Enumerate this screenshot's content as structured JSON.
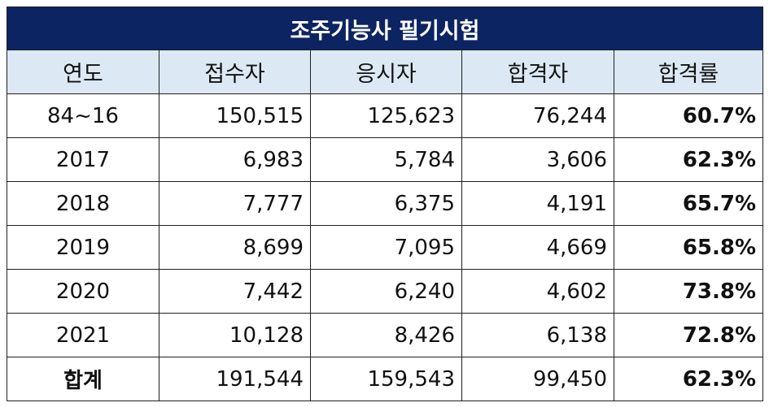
{
  "table": {
    "title": "조주기능사 필기시험",
    "headers": [
      "연도",
      "접수자",
      "응시자",
      "합격자",
      "합격률"
    ],
    "rows": [
      {
        "year": "84~16",
        "registered": "150,515",
        "examinees": "125,623",
        "passed": "76,244",
        "pass_rate": "60.7%"
      },
      {
        "year": "2017",
        "registered": "6,983",
        "examinees": "5,784",
        "passed": "3,606",
        "pass_rate": "62.3%"
      },
      {
        "year": "2018",
        "registered": "7,777",
        "examinees": "6,375",
        "passed": "4,191",
        "pass_rate": "65.7%"
      },
      {
        "year": "2019",
        "registered": "8,699",
        "examinees": "7,095",
        "passed": "4,669",
        "pass_rate": "65.8%"
      },
      {
        "year": "2020",
        "registered": "7,442",
        "examinees": "6,240",
        "passed": "4,602",
        "pass_rate": "73.8%"
      },
      {
        "year": "2021",
        "registered": "10,128",
        "examinees": "8,426",
        "passed": "6,138",
        "pass_rate": "72.8%"
      }
    ],
    "total": {
      "label": "합계",
      "registered": "191,544",
      "examinees": "159,543",
      "passed": "99,450",
      "pass_rate": "62.3%"
    }
  },
  "colors": {
    "title_bg": "#0d2463",
    "title_text": "#ffffff",
    "header_bg": "#dce9f5",
    "border": "#1f1f1f"
  }
}
